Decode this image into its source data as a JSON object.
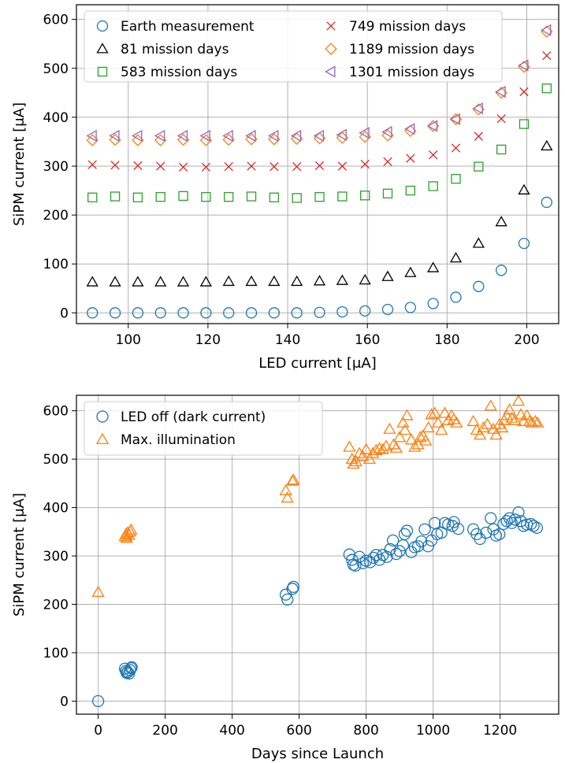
{
  "chart_data": [
    {
      "type": "scatter",
      "xlabel": "LED current [μA]",
      "ylabel": "SiPM current [μA]",
      "xlim": [
        87,
        208
      ],
      "ylim": [
        -22,
        630
      ],
      "xticks": [
        100,
        120,
        140,
        160,
        180,
        200
      ],
      "yticks": [
        0,
        100,
        200,
        300,
        400,
        500,
        600
      ],
      "grid": true,
      "legend": "top-left, two columns",
      "x": [
        91,
        96.7,
        102.4,
        108.1,
        113.8,
        119.5,
        125.2,
        130.9,
        136.6,
        142.3,
        148,
        153.7,
        159.4,
        165.1,
        170.8,
        176.5,
        182.2,
        187.9,
        193.6,
        199.3,
        205
      ],
      "series": [
        {
          "name": "Earth measurement",
          "marker": "circle",
          "color": "#1f77b4",
          "values": [
            0,
            0,
            0,
            0,
            0,
            0,
            0,
            0,
            0,
            0,
            1,
            2,
            4,
            7,
            11,
            19,
            32,
            54,
            87,
            142,
            226
          ]
        },
        {
          "name": "81 mission days",
          "marker": "triangle-up",
          "color": "#000000",
          "values": [
            63,
            63,
            63,
            63,
            63,
            63,
            64,
            64,
            64,
            64,
            65,
            66,
            67,
            74,
            82,
            92,
            112,
            142,
            186,
            251,
            341
          ]
        },
        {
          "name": "583 mission days",
          "marker": "square",
          "color": "#2ca02c",
          "values": [
            236,
            238,
            236,
            237,
            239,
            237,
            237,
            238,
            236,
            235,
            237,
            238,
            240,
            244,
            250,
            259,
            274,
            299,
            334,
            386,
            459
          ]
        },
        {
          "name": "749 mission days",
          "marker": "x",
          "color": "#d62728",
          "values": [
            303,
            302,
            301,
            300,
            298,
            298,
            299,
            300,
            299,
            299,
            301,
            300,
            304,
            309,
            316,
            323,
            337,
            361,
            397,
            452,
            526
          ]
        },
        {
          "name": "1189 mission days",
          "marker": "diamond",
          "color": "#ff7f0e",
          "values": [
            353,
            354,
            353,
            353,
            354,
            353,
            354,
            355,
            355,
            356,
            357,
            358,
            360,
            363,
            372,
            382,
            396,
            416,
            450,
            503,
            575
          ]
        },
        {
          "name": "1301 mission days",
          "marker": "triangle-left",
          "color": "#9467bd",
          "values": [
            362,
            362,
            362,
            362,
            362,
            362,
            362,
            362,
            362,
            362,
            362,
            364,
            368,
            370,
            376,
            382,
            396,
            418,
            452,
            506,
            578
          ]
        }
      ]
    },
    {
      "type": "scatter",
      "xlabel": "Days since Launch",
      "ylabel": "SiPM current [μA]",
      "xlim": [
        -65,
        1375
      ],
      "ylim": [
        -27,
        632
      ],
      "xticks": [
        0,
        200,
        400,
        600,
        800,
        1000,
        1200
      ],
      "yticks": [
        0,
        100,
        200,
        300,
        400,
        500,
        600
      ],
      "grid": true,
      "legend": "top-left",
      "series": [
        {
          "name": "LED off (dark current)",
          "marker": "circle",
          "color": "#1f77b4",
          "points": [
            [
              0,
              0
            ],
            [
              80,
              67
            ],
            [
              83,
              62
            ],
            [
              85,
              58
            ],
            [
              88,
              60
            ],
            [
              92,
              57
            ],
            [
              95,
              64
            ],
            [
              98,
              68
            ],
            [
              100,
              70
            ],
            [
              560,
              220
            ],
            [
              565,
              210
            ],
            [
              580,
              232
            ],
            [
              583,
              236
            ],
            [
              750,
              303
            ],
            [
              758,
              292
            ],
            [
              762,
              282
            ],
            [
              768,
              280
            ],
            [
              780,
              298
            ],
            [
              790,
              285
            ],
            [
              800,
              290
            ],
            [
              812,
              287
            ],
            [
              822,
              296
            ],
            [
              830,
              302
            ],
            [
              840,
              292
            ],
            [
              850,
              302
            ],
            [
              862,
              298
            ],
            [
              872,
              314
            ],
            [
              880,
              332
            ],
            [
              890,
              304
            ],
            [
              900,
              310
            ],
            [
              910,
              322
            ],
            [
              915,
              345
            ],
            [
              922,
              352
            ],
            [
              935,
              308
            ],
            [
              945,
              318
            ],
            [
              955,
              320
            ],
            [
              965,
              330
            ],
            [
              975,
              355
            ],
            [
              985,
              320
            ],
            [
              995,
              332
            ],
            [
              1005,
              368
            ],
            [
              1012,
              345
            ],
            [
              1025,
              348
            ],
            [
              1035,
              368
            ],
            [
              1045,
              365
            ],
            [
              1058,
              362
            ],
            [
              1062,
              370
            ],
            [
              1075,
              356
            ],
            [
              1120,
              355
            ],
            [
              1130,
              345
            ],
            [
              1140,
              335
            ],
            [
              1158,
              348
            ],
            [
              1172,
              378
            ],
            [
              1180,
              355
            ],
            [
              1188,
              342
            ],
            [
              1198,
              345
            ],
            [
              1210,
              366
            ],
            [
              1220,
              372
            ],
            [
              1228,
              378
            ],
            [
              1235,
              368
            ],
            [
              1245,
              375
            ],
            [
              1255,
              390
            ],
            [
              1262,
              372
            ],
            [
              1270,
              362
            ],
            [
              1280,
              365
            ],
            [
              1292,
              366
            ],
            [
              1300,
              362
            ],
            [
              1310,
              358
            ]
          ]
        },
        {
          "name": "Max. illumination",
          "marker": "triangle-up",
          "color": "#ff7f0e",
          "points": [
            [
              0,
              225
            ],
            [
              80,
              340
            ],
            [
              83,
              345
            ],
            [
              85,
              337
            ],
            [
              88,
              348
            ],
            [
              92,
              343
            ],
            [
              95,
              350
            ],
            [
              98,
              354
            ],
            [
              560,
              435
            ],
            [
              565,
              420
            ],
            [
              580,
              455
            ],
            [
              583,
              457
            ],
            [
              750,
              525
            ],
            [
              758,
              500
            ],
            [
              762,
              490
            ],
            [
              770,
              495
            ],
            [
              780,
              512
            ],
            [
              790,
              506
            ],
            [
              800,
              520
            ],
            [
              810,
              500
            ],
            [
              820,
              512
            ],
            [
              830,
              518
            ],
            [
              840,
              522
            ],
            [
              850,
              520
            ],
            [
              860,
              527
            ],
            [
              870,
              562
            ],
            [
              882,
              530
            ],
            [
              890,
              523
            ],
            [
              900,
              545
            ],
            [
              910,
              575
            ],
            [
              916,
              560
            ],
            [
              922,
              590
            ],
            [
              935,
              540
            ],
            [
              945,
              525
            ],
            [
              955,
              530
            ],
            [
              962,
              545
            ],
            [
              970,
              548
            ],
            [
              978,
              538
            ],
            [
              986,
              565
            ],
            [
              995,
              592
            ],
            [
              1005,
              595
            ],
            [
              1015,
              575
            ],
            [
              1025,
              560
            ],
            [
              1035,
              595
            ],
            [
              1045,
              580
            ],
            [
              1055,
              590
            ],
            [
              1062,
              582
            ],
            [
              1070,
              575
            ],
            [
              1120,
              578
            ],
            [
              1130,
              560
            ],
            [
              1140,
              550
            ],
            [
              1150,
              565
            ],
            [
              1162,
              572
            ],
            [
              1172,
              610
            ],
            [
              1180,
              562
            ],
            [
              1188,
              550
            ],
            [
              1198,
              572
            ],
            [
              1206,
              565
            ],
            [
              1212,
              580
            ],
            [
              1220,
              590
            ],
            [
              1228,
              602
            ],
            [
              1235,
              585
            ],
            [
              1245,
              580
            ],
            [
              1255,
              620
            ],
            [
              1262,
              592
            ],
            [
              1270,
              578
            ],
            [
              1280,
              590
            ],
            [
              1288,
              578
            ],
            [
              1295,
              575
            ],
            [
              1305,
              578
            ],
            [
              1312,
              575
            ]
          ]
        }
      ]
    }
  ]
}
